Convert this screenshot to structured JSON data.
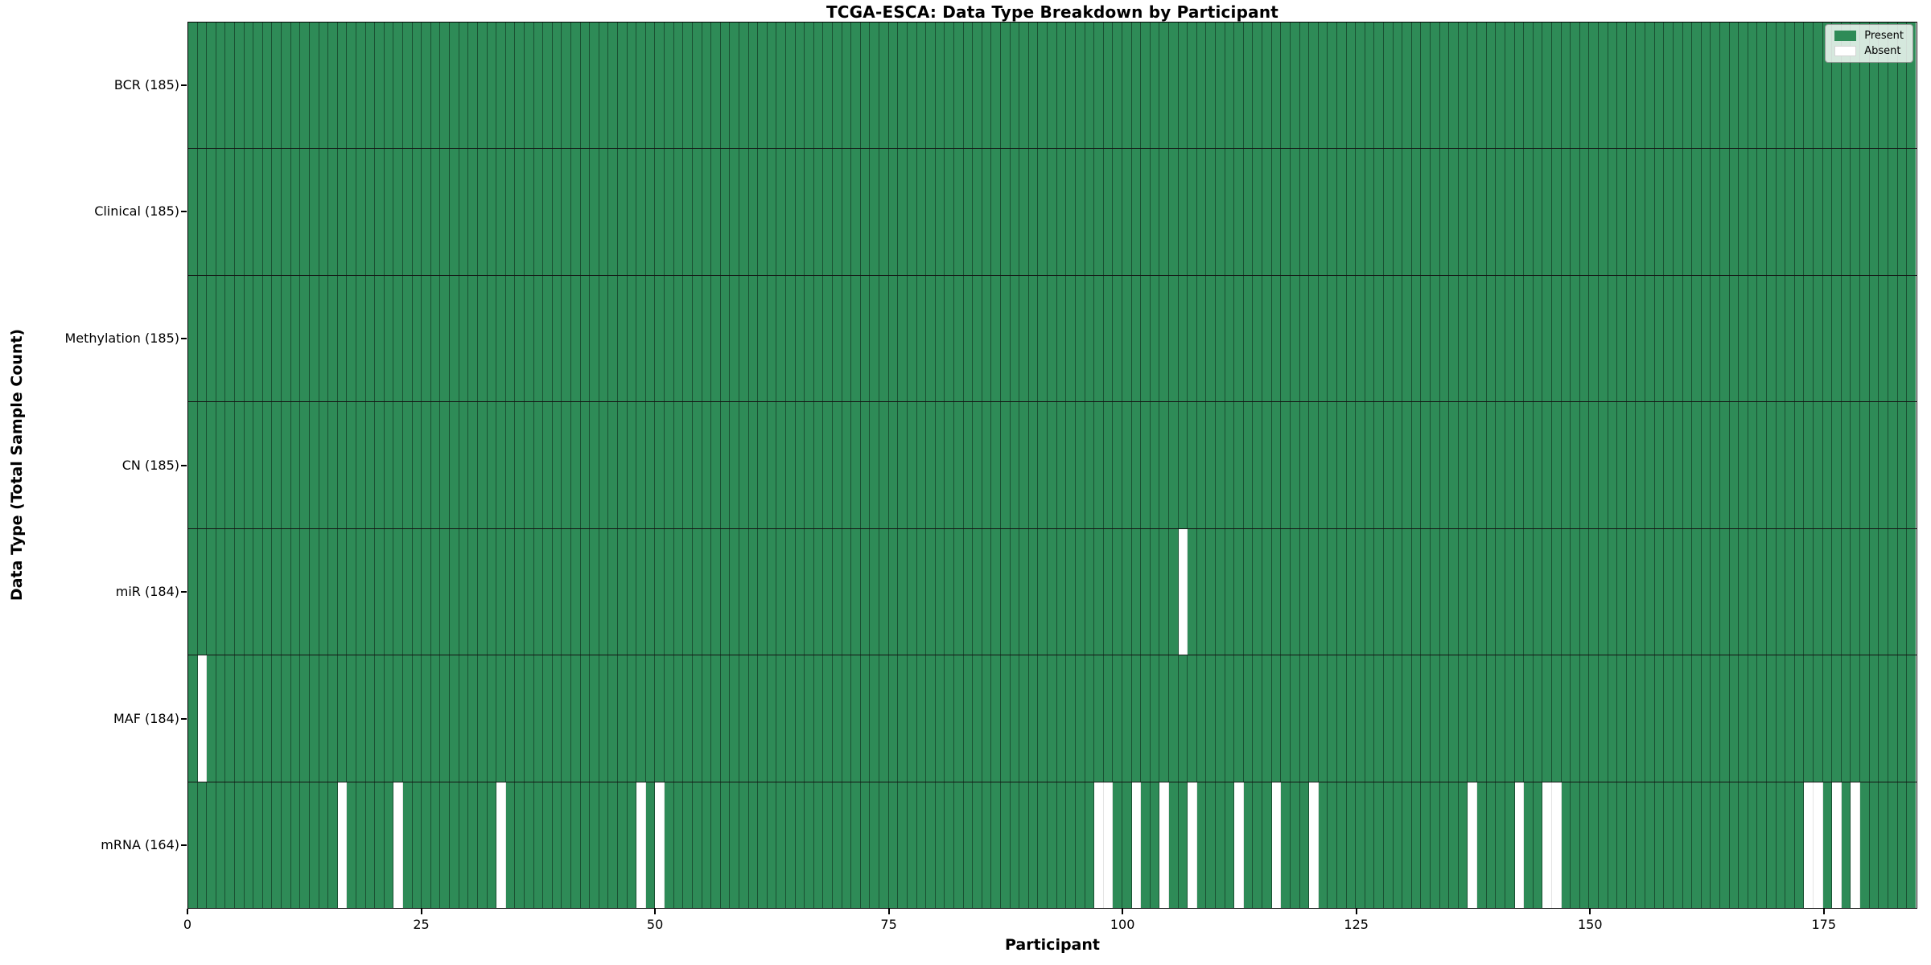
{
  "title": "TCGA-ESCA: Data Type Breakdown by Participant",
  "colors": {
    "present": "#2e8b57",
    "absent": "#ffffff",
    "spine": "#000000"
  },
  "legend": {
    "entries": [
      {
        "name": "present",
        "label": "Present",
        "color": "#2e8b57"
      },
      {
        "name": "absent",
        "label": "Absent",
        "color": "#ffffff"
      }
    ]
  },
  "x_axis": {
    "label": "Participant",
    "ticks": [
      0,
      25,
      50,
      75,
      100,
      125,
      150,
      175
    ],
    "range": [
      0,
      185
    ]
  },
  "y_axis": {
    "label": "Data Type (Total Sample Count)"
  },
  "chart_data": {
    "type": "heatmap",
    "title": "TCGA-ESCA: Data Type Breakdown by Participant",
    "xlabel": "Participant",
    "ylabel": "Data Type (Total Sample Count)",
    "n_participants": 185,
    "x_ticks": [
      0,
      25,
      50,
      75,
      100,
      125,
      150,
      175
    ],
    "legend_position": "upper right",
    "grid": "cell-borders",
    "value_legend": {
      "present": "Present",
      "absent": "Absent"
    },
    "rows": [
      {
        "label": "BCR (185)",
        "data_type": "BCR",
        "total_present": 185,
        "absent_participants": []
      },
      {
        "label": "Clinical (185)",
        "data_type": "Clinical",
        "total_present": 185,
        "absent_participants": []
      },
      {
        "label": "Methylation (185)",
        "data_type": "Methylation",
        "total_present": 185,
        "absent_participants": []
      },
      {
        "label": "CN (185)",
        "data_type": "CN",
        "total_present": 185,
        "absent_participants": []
      },
      {
        "label": "miR (184)",
        "data_type": "miR",
        "total_present": 184,
        "absent_participants": [
          106
        ]
      },
      {
        "label": "MAF (184)",
        "data_type": "MAF",
        "total_present": 184,
        "absent_participants": [
          1
        ]
      },
      {
        "label": "mRNA (164)",
        "data_type": "mRNA",
        "total_present": 164,
        "absent_participants": [
          16,
          22,
          33,
          48,
          50,
          97,
          98,
          101,
          104,
          107,
          112,
          116,
          120,
          137,
          142,
          145,
          146,
          173,
          174,
          176,
          178
        ]
      }
    ]
  }
}
